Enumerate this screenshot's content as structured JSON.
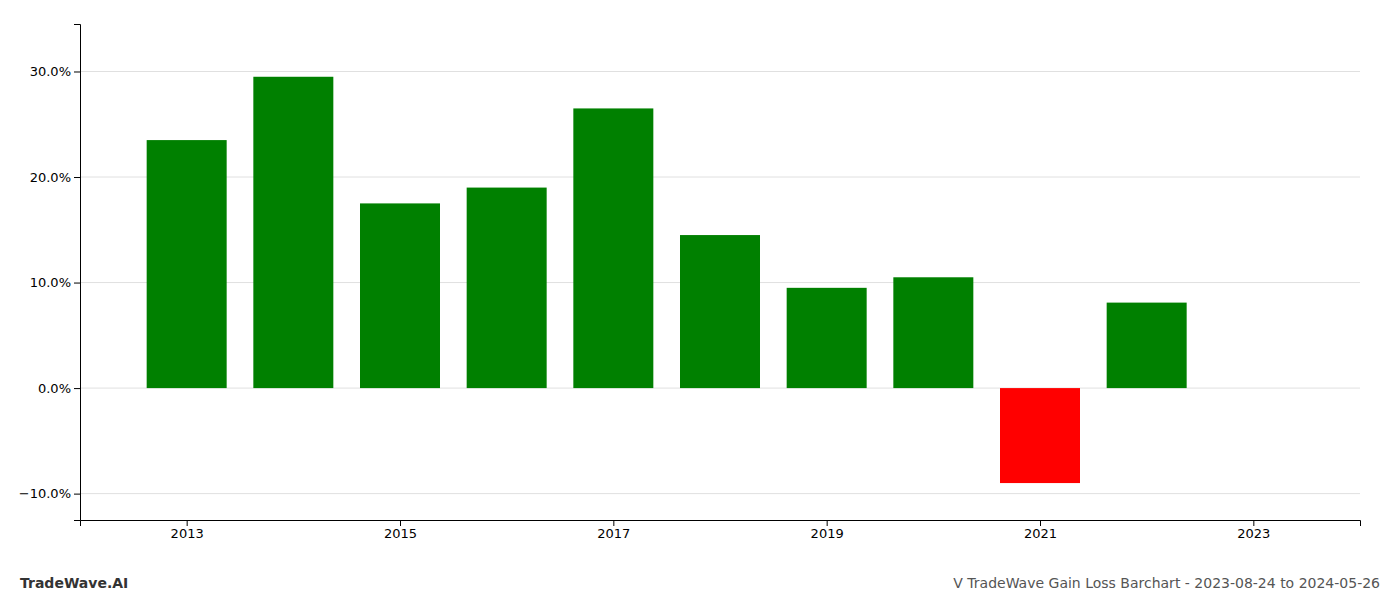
{
  "chart_data": {
    "type": "bar",
    "title": "V TradeWave Gain Loss Barchart - 2023-08-24 to 2024-05-26",
    "annotations": [
      "TradeWave.AI"
    ],
    "x": [
      2013,
      2014,
      2015,
      2016,
      2017,
      2018,
      2019,
      2020,
      2021,
      2022
    ],
    "values": [
      0.235,
      0.295,
      0.175,
      0.19,
      0.265,
      0.145,
      0.095,
      0.105,
      -0.09,
      0.081
    ],
    "colors": [
      "#008000",
      "#008000",
      "#008000",
      "#008000",
      "#008000",
      "#008000",
      "#008000",
      "#008000",
      "#ff0000",
      "#008000"
    ],
    "xlim": [
      2012.0,
      2024.0
    ],
    "xticks": [
      2013,
      2015,
      2017,
      2019,
      2021,
      2023
    ],
    "ylim": [
      -0.125,
      0.345
    ],
    "yticks": [
      {
        "value": -0.1,
        "label": "−10.0%"
      },
      {
        "value": 0.0,
        "label": "0.0%"
      },
      {
        "value": 0.1,
        "label": "10.0%"
      },
      {
        "value": 0.2,
        "label": "20.0%"
      },
      {
        "value": 0.3,
        "label": "30.0%"
      }
    ],
    "grid": true
  }
}
